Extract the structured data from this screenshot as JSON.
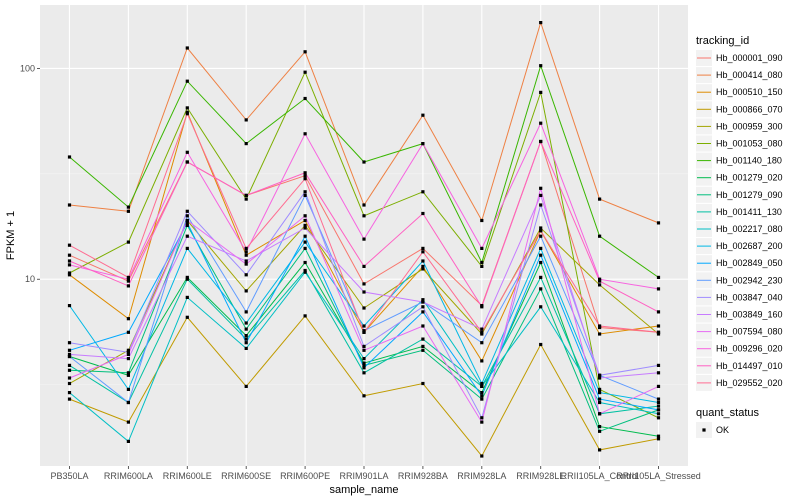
{
  "chart_data": {
    "type": "line",
    "xlabel": "sample_name",
    "ylabel": "FPKM + 1",
    "y_scale": "log10",
    "ylim": [
      1.3,
      200
    ],
    "y_ticks": [
      {
        "value": 10,
        "label": "10"
      },
      {
        "value": 100,
        "label": "100"
      }
    ],
    "grid": true,
    "legend_position": "right",
    "categories": [
      "PB350LA",
      "RRIM600LA",
      "RRIM600LE",
      "RRIM600SE",
      "RRIM600PE",
      "RRIM901LA",
      "RRIM928BA",
      "RRIM928LA",
      "RRIM928LE",
      "RRII105LA_Control",
      "RRII105LA_Stressed"
    ],
    "legend_title": "tracking_id",
    "status_legend": {
      "title": "quant_status",
      "entries": [
        "OK"
      ]
    },
    "series": [
      {
        "name": "Hb_000001_090",
        "color": "#F8766D",
        "values": [
          13.0,
          9.8,
          36,
          25,
          31,
          9.5,
          14.0,
          7.5,
          45,
          5.9,
          5.6
        ]
      },
      {
        "name": "Hb_000414_080",
        "color": "#EE8043",
        "values": [
          22.5,
          21.0,
          125,
          57,
          120,
          22.5,
          60,
          19.0,
          165,
          24,
          18.5
        ]
      },
      {
        "name": "Hb_000510_150",
        "color": "#DE8C00",
        "values": [
          10.5,
          6.5,
          62,
          13.0,
          19.0,
          5.6,
          11.5,
          4.1,
          17.0,
          5.5,
          6.0
        ]
      },
      {
        "name": "Hb_000866_070",
        "color": "#C09B00",
        "values": [
          2.7,
          2.1,
          6.6,
          3.1,
          6.7,
          2.8,
          3.2,
          1.45,
          4.9,
          1.55,
          1.75
        ]
      },
      {
        "name": "Hb_000959_300",
        "color": "#A3A500",
        "values": [
          3.2,
          4.6,
          19.0,
          8.8,
          18.0,
          7.3,
          11.2,
          5.5,
          17.5,
          9.4,
          5.5
        ]
      },
      {
        "name": "Hb_001053_080",
        "color": "#7CAE00",
        "values": [
          10.7,
          15.0,
          65,
          24,
          96,
          20.0,
          26,
          11.5,
          77,
          3.0,
          2.2
        ]
      },
      {
        "name": "Hb_001140_180",
        "color": "#39B600",
        "values": [
          38,
          22.0,
          87,
          44,
          72,
          36,
          44,
          12.0,
          103,
          16.0,
          10.2
        ]
      },
      {
        "name": "Hb_001279_020",
        "color": "#00BB4E",
        "values": [
          4.3,
          3.5,
          10.2,
          5.4,
          12.0,
          4.0,
          4.8,
          2.9,
          12.0,
          2.0,
          1.8
        ]
      },
      {
        "name": "Hb_001279_090",
        "color": "#00BF7D",
        "values": [
          3.7,
          3.6,
          18.0,
          5.8,
          14.0,
          3.9,
          4.6,
          2.7,
          9.0,
          1.9,
          2.4
        ]
      },
      {
        "name": "Hb_001411_130",
        "color": "#00C1A3",
        "values": [
          3.9,
          2.6,
          10.0,
          5.2,
          11.0,
          3.6,
          5.2,
          3.1,
          10.2,
          2.3,
          2.5
        ]
      },
      {
        "name": "Hb_002217_080",
        "color": "#00BFC4",
        "values": [
          2.9,
          1.7,
          8.2,
          4.7,
          10.8,
          4.2,
          8.0,
          3.1,
          7.4,
          2.6,
          2.3
        ]
      },
      {
        "name": "Hb_002687_200",
        "color": "#00B8E5",
        "values": [
          7.5,
          3.0,
          14.0,
          6.2,
          15.0,
          6.0,
          12.2,
          3.2,
          14.0,
          2.9,
          2.6
        ]
      },
      {
        "name": "Hb_002849_050",
        "color": "#00A9FF",
        "values": [
          4.6,
          5.6,
          18.5,
          5.0,
          16.0,
          3.8,
          7.0,
          2.8,
          13.0,
          2.7,
          2.4
        ]
      },
      {
        "name": "Hb_002942_230",
        "color": "#619CFF",
        "values": [
          4.3,
          2.6,
          20.0,
          7.0,
          25,
          5.7,
          7.8,
          5.0,
          16.0,
          3.5,
          2.7
        ]
      },
      {
        "name": "Hb_003847_040",
        "color": "#9F8CFF",
        "values": [
          5.0,
          4.5,
          21.0,
          10.5,
          26,
          4.8,
          7.4,
          2.2,
          22.5,
          3.5,
          3.9
        ]
      },
      {
        "name": "Hb_003849_160",
        "color": "#C77CFF",
        "values": [
          4.4,
          4.2,
          16.0,
          12.2,
          17.5,
          8.7,
          7.8,
          5.8,
          25,
          3.4,
          3.6
        ]
      },
      {
        "name": "Hb_007594_080",
        "color": "#E76BF3",
        "values": [
          3.4,
          4.4,
          19.0,
          11.8,
          20.0,
          4.6,
          6.0,
          2.1,
          27,
          2.3,
          3.1
        ]
      },
      {
        "name": "Hb_009296_020",
        "color": "#F763E0",
        "values": [
          11.7,
          10.0,
          40,
          13.5,
          49,
          15.5,
          44,
          14.0,
          55,
          10.0,
          9.0
        ]
      },
      {
        "name": "Hb_014497_010",
        "color": "#FF61C3",
        "values": [
          12.2,
          9.3,
          36,
          25,
          32,
          11.5,
          20.5,
          7.4,
          45,
          9.8,
          7.0
        ]
      },
      {
        "name": "Hb_029552_020",
        "color": "#FF6C91",
        "values": [
          14.5,
          10.2,
          61,
          14.0,
          30,
          5.6,
          13.5,
          5.6,
          17.0,
          6.0,
          5.6
        ]
      }
    ]
  }
}
